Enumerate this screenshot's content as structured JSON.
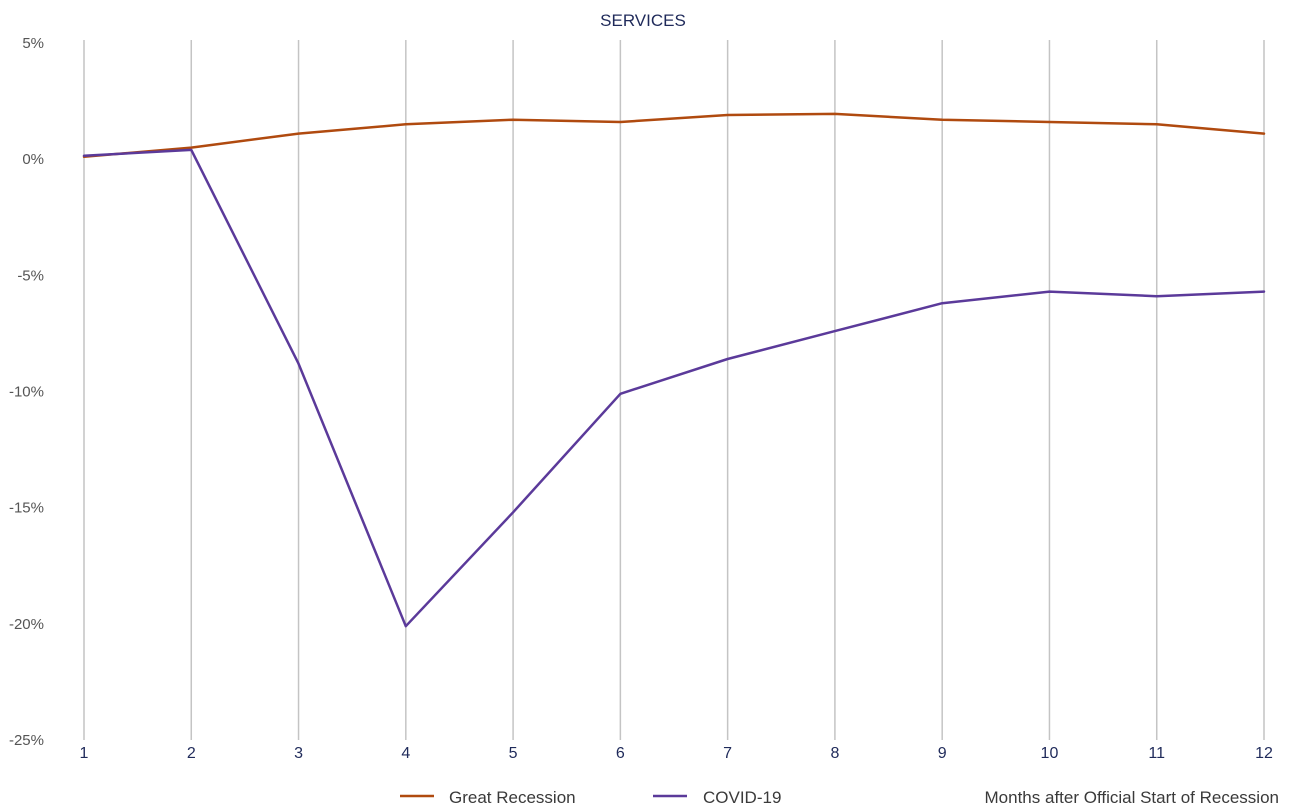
{
  "chart_data": {
    "type": "line",
    "title": "SERVICES",
    "xlabel": "Months after Official Start of Recession",
    "ylabel": "",
    "x": [
      1,
      2,
      3,
      4,
      5,
      6,
      7,
      8,
      9,
      10,
      11,
      12
    ],
    "x_tick_labels": [
      "1",
      "2",
      "3",
      "4",
      "5",
      "6",
      "7",
      "8",
      "9",
      "10",
      "11",
      "12"
    ],
    "y_ticks": [
      5,
      0,
      -5,
      -10,
      -15,
      -20,
      -25
    ],
    "y_tick_labels": [
      "5%",
      "0%",
      "-5%",
      "-10%",
      "-15%",
      "-20%",
      "-25%"
    ],
    "ylim": [
      -25,
      5
    ],
    "grid": "vertical",
    "legend_position": "bottom",
    "series": [
      {
        "name": "Great Recession",
        "color": "#b04a0f",
        "values": [
          0.1,
          0.5,
          1.1,
          1.5,
          1.7,
          1.6,
          1.9,
          1.95,
          1.7,
          1.6,
          1.5,
          1.1
        ]
      },
      {
        "name": "COVID-19",
        "color": "#5b3a9a",
        "values": [
          0.15,
          0.4,
          -8.8,
          -20.1,
          -15.2,
          -10.1,
          -8.6,
          -7.4,
          -6.2,
          -5.7,
          -5.9,
          -5.7
        ]
      }
    ]
  }
}
